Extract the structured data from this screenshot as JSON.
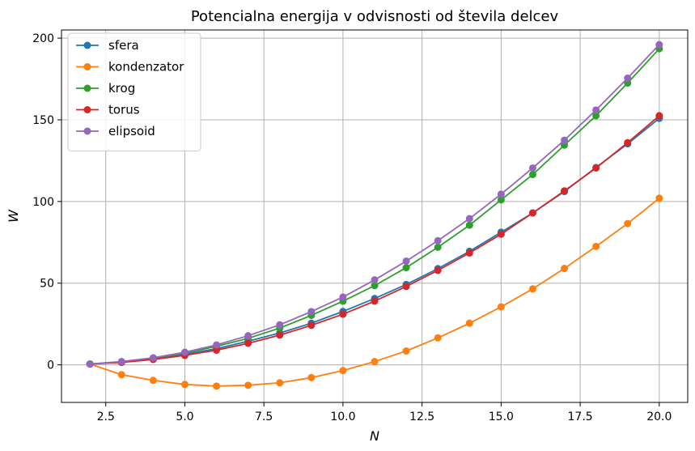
{
  "chart_data": {
    "type": "line",
    "title": "Potencialna energija v odvisnosti od števila delcev",
    "xlabel": "N",
    "ylabel": "W",
    "xlim": [
      1.1,
      20.9
    ],
    "ylim": [
      -23,
      205
    ],
    "xticks": [
      2.5,
      5.0,
      7.5,
      10.0,
      12.5,
      15.0,
      17.5,
      20.0
    ],
    "xtick_labels": [
      "2.5",
      "5.0",
      "7.5",
      "10.0",
      "12.5",
      "15.0",
      "17.5",
      "20.0"
    ],
    "yticks": [
      0,
      50,
      100,
      150,
      200
    ],
    "ytick_labels": [
      "0",
      "50",
      "100",
      "150",
      "200"
    ],
    "grid": true,
    "legend_position": "top-left",
    "x": [
      2,
      3,
      4,
      5,
      6,
      7,
      8,
      9,
      10,
      11,
      12,
      13,
      14,
      15,
      16,
      17,
      18,
      19,
      20
    ],
    "series": [
      {
        "name": "sfera",
        "color": "#1f77b4",
        "values": [
          0.5,
          1.7,
          3.7,
          6.5,
          9.9,
          14.5,
          19.5,
          25.5,
          32.7,
          40.6,
          49.2,
          58.9,
          69.5,
          81.2,
          93.0,
          106.1,
          120.8,
          135.3,
          150.9
        ]
      },
      {
        "name": "kondenzator",
        "color": "#ff7f0e",
        "values": [
          0.5,
          -6.0,
          -9.5,
          -12.0,
          -13.0,
          -12.5,
          -11.0,
          -7.8,
          -3.5,
          2.0,
          8.5,
          16.5,
          25.5,
          35.5,
          46.5,
          59.0,
          72.5,
          86.5,
          102.0
        ]
      },
      {
        "name": "krog",
        "color": "#2ca02c",
        "values": [
          0.5,
          1.9,
          4.0,
          7.2,
          11.3,
          16.2,
          22.5,
          30.3,
          39.0,
          48.5,
          59.5,
          72.0,
          85.5,
          101.0,
          116.5,
          134.5,
          152.5,
          172.5,
          193.5
        ]
      },
      {
        "name": "torus",
        "color": "#d62728",
        "values": [
          0.5,
          1.5,
          3.3,
          5.8,
          9.0,
          13.2,
          18.2,
          24.2,
          31.0,
          39.0,
          48.0,
          57.8,
          68.5,
          80.0,
          93.0,
          106.5,
          120.5,
          136.0,
          152.5
        ]
      },
      {
        "name": "elipsoid",
        "color": "#9467bd",
        "values": [
          0.5,
          2.0,
          4.3,
          7.7,
          12.2,
          17.8,
          24.5,
          32.6,
          41.5,
          52.0,
          63.5,
          76.0,
          89.5,
          104.5,
          120.5,
          137.5,
          156.0,
          175.5,
          196.0
        ]
      }
    ]
  }
}
